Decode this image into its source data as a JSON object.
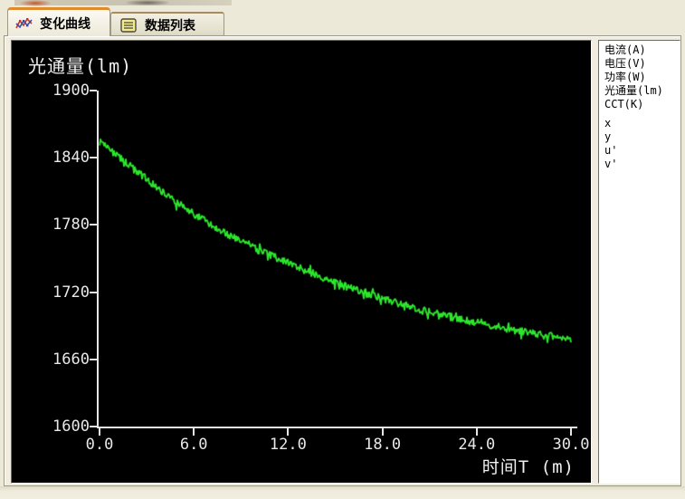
{
  "tabs": [
    {
      "label": "变化曲线",
      "icon": "curve-chart-icon",
      "active": true
    },
    {
      "label": "数据列表",
      "icon": "data-list-icon",
      "active": false
    }
  ],
  "legend": {
    "items": [
      "电流(A)",
      "电压(V)",
      "功率(W)",
      "光通量(lm)",
      "CCT(K)",
      "x",
      "y",
      "u'",
      "v'"
    ]
  },
  "chart_data": {
    "type": "line",
    "title": "",
    "ylabel": "光通量(lm)",
    "xlabel": "时间T (m)",
    "xlim": [
      0,
      30
    ],
    "ylim": [
      1600,
      1900
    ],
    "x_ticks": [
      "0.0",
      "6.0",
      "12.0",
      "18.0",
      "24.0",
      "30.0"
    ],
    "y_ticks": [
      "1900",
      "1840",
      "1780",
      "1720",
      "1660",
      "1600"
    ],
    "grid": false,
    "legend_position": "right-panel",
    "background_color": "#000000",
    "axis_color": "#e6e6e6",
    "series": [
      {
        "name": "光通量(lm)",
        "color": "#2de52d",
        "x": [
          0,
          2,
          4,
          6,
          8,
          10,
          12,
          14,
          16,
          18,
          20,
          22,
          24,
          26,
          28,
          30
        ],
        "values": [
          1855,
          1832,
          1810,
          1790,
          1773,
          1759,
          1746,
          1734,
          1724,
          1714,
          1706,
          1699,
          1693,
          1687,
          1682,
          1678
        ],
        "noise_amplitude": 3.2,
        "spike_amplitude": 6,
        "spike_probability": 0.12
      }
    ]
  }
}
